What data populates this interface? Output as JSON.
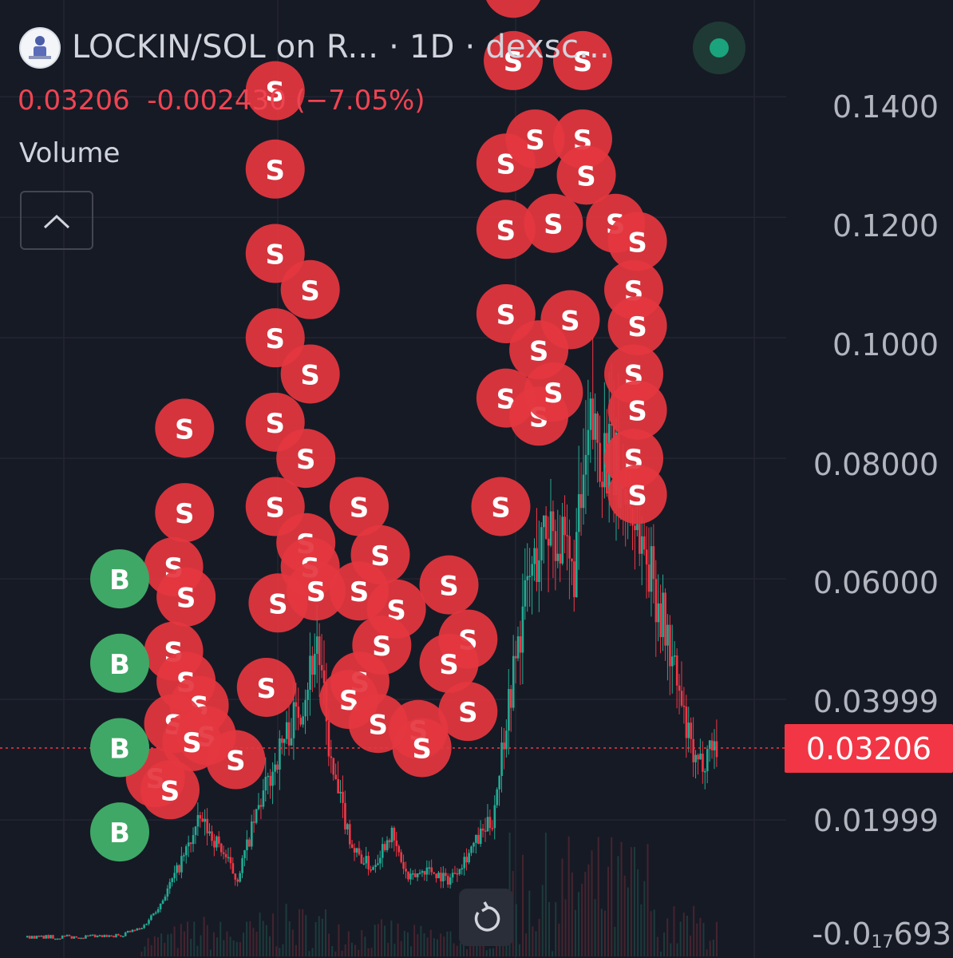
{
  "header": {
    "title": "LOCKIN/SOL on R...  · 1D · dexsc...",
    "price": "0.03206",
    "change": "-0.002430 (−7.05%)",
    "volume_label": "Volume",
    "collapse_icon": "chevron-up-icon",
    "logo_icon": "token-logo-icon",
    "status_icon": "live-status-dot-icon"
  },
  "controls": {
    "reset_icon": "reset-rotate-icon"
  },
  "colors": {
    "up": "#22ab94",
    "down": "#f23645",
    "sell_marker": "#e4373f",
    "buy_marker": "#3fa866",
    "background": "#161a25",
    "grid": "#232632"
  },
  "chart_data": {
    "type": "candlestick",
    "title": "LOCKIN/SOL on R...  · 1D · dexsc...",
    "interval": "1D",
    "last_price": 0.03206,
    "last_price_label": "0.03206",
    "change": -0.00243,
    "change_pct": -7.05,
    "y_tick_labels": [
      "0.1400",
      "0.1200",
      "0.1000",
      "0.08000",
      "0.06000",
      "0.03999",
      "0.01999"
    ],
    "y_ticks": [
      0.14,
      0.12,
      0.1,
      0.08,
      0.06,
      0.03999,
      0.01999
    ],
    "y_bottom_label": {
      "prefix": "-0.0",
      "sub": "17",
      "suffix": "693"
    },
    "ylim": [
      0.0,
      0.155
    ],
    "grid": true,
    "close_path": [
      [
        0.0,
        0.0005
      ],
      [
        0.12,
        0.0006
      ],
      [
        0.16,
        0.002
      ],
      [
        0.185,
        0.006
      ],
      [
        0.21,
        0.012
      ],
      [
        0.24,
        0.02
      ],
      [
        0.27,
        0.015
      ],
      [
        0.29,
        0.01
      ],
      [
        0.32,
        0.022
      ],
      [
        0.35,
        0.032
      ],
      [
        0.38,
        0.04
      ],
      [
        0.4,
        0.05
      ],
      [
        0.42,
        0.028
      ],
      [
        0.45,
        0.015
      ],
      [
        0.475,
        0.012
      ],
      [
        0.5,
        0.018
      ],
      [
        0.525,
        0.01
      ],
      [
        0.55,
        0.012
      ],
      [
        0.58,
        0.01
      ],
      [
        0.61,
        0.015
      ],
      [
        0.64,
        0.02
      ],
      [
        0.66,
        0.038
      ],
      [
        0.69,
        0.06
      ],
      [
        0.72,
        0.07
      ],
      [
        0.75,
        0.06
      ],
      [
        0.775,
        0.085
      ],
      [
        0.8,
        0.08
      ],
      [
        0.83,
        0.072
      ],
      [
        0.86,
        0.06
      ],
      [
        0.88,
        0.05
      ],
      [
        0.905,
        0.035
      ],
      [
        0.92,
        0.028
      ],
      [
        0.94,
        0.033
      ],
      [
        0.95,
        0.032
      ]
    ],
    "buy_markers": [
      0.06,
      0.046,
      0.032,
      0.018
    ],
    "sell_markers": [
      {
        "x": 0.22,
        "y": 0.085
      },
      {
        "x": 0.22,
        "y": 0.071
      },
      {
        "x": 0.205,
        "y": 0.062
      },
      {
        "x": 0.222,
        "y": 0.057
      },
      {
        "x": 0.205,
        "y": 0.048
      },
      {
        "x": 0.222,
        "y": 0.043
      },
      {
        "x": 0.24,
        "y": 0.039
      },
      {
        "x": 0.205,
        "y": 0.036
      },
      {
        "x": 0.25,
        "y": 0.034
      },
      {
        "x": 0.29,
        "y": 0.03
      },
      {
        "x": 0.18,
        "y": 0.027
      },
      {
        "x": 0.2,
        "y": 0.025
      },
      {
        "x": 0.23,
        "y": 0.033
      },
      {
        "x": 0.344,
        "y": 0.141
      },
      {
        "x": 0.344,
        "y": 0.128
      },
      {
        "x": 0.344,
        "y": 0.114
      },
      {
        "x": 0.392,
        "y": 0.108
      },
      {
        "x": 0.344,
        "y": 0.1
      },
      {
        "x": 0.392,
        "y": 0.094
      },
      {
        "x": 0.344,
        "y": 0.086
      },
      {
        "x": 0.386,
        "y": 0.08
      },
      {
        "x": 0.344,
        "y": 0.072
      },
      {
        "x": 0.386,
        "y": 0.066
      },
      {
        "x": 0.392,
        "y": 0.062
      },
      {
        "x": 0.348,
        "y": 0.056
      },
      {
        "x": 0.4,
        "y": 0.058
      },
      {
        "x": 0.332,
        "y": 0.042
      },
      {
        "x": 0.459,
        "y": 0.072
      },
      {
        "x": 0.488,
        "y": 0.064
      },
      {
        "x": 0.459,
        "y": 0.058
      },
      {
        "x": 0.51,
        "y": 0.055
      },
      {
        "x": 0.49,
        "y": 0.049
      },
      {
        "x": 0.46,
        "y": 0.043
      },
      {
        "x": 0.445,
        "y": 0.04
      },
      {
        "x": 0.485,
        "y": 0.036
      },
      {
        "x": 0.54,
        "y": 0.035
      },
      {
        "x": 0.582,
        "y": 0.059
      },
      {
        "x": 0.608,
        "y": 0.05
      },
      {
        "x": 0.582,
        "y": 0.046
      },
      {
        "x": 0.608,
        "y": 0.038
      },
      {
        "x": 0.545,
        "y": 0.032
      },
      {
        "x": 0.653,
        "y": 0.072
      },
      {
        "x": 0.66,
        "y": 0.09
      },
      {
        "x": 0.705,
        "y": 0.087
      },
      {
        "x": 0.725,
        "y": 0.091
      },
      {
        "x": 0.66,
        "y": 0.104
      },
      {
        "x": 0.705,
        "y": 0.098
      },
      {
        "x": 0.748,
        "y": 0.103
      },
      {
        "x": 0.66,
        "y": 0.118
      },
      {
        "x": 0.725,
        "y": 0.119
      },
      {
        "x": 0.66,
        "y": 0.129
      },
      {
        "x": 0.7,
        "y": 0.133
      },
      {
        "x": 0.67,
        "y": 0.146
      },
      {
        "x": 0.67,
        "y": 0.158
      },
      {
        "x": 0.765,
        "y": 0.146
      },
      {
        "x": 0.765,
        "y": 0.133
      },
      {
        "x": 0.77,
        "y": 0.127
      },
      {
        "x": 0.81,
        "y": 0.119
      },
      {
        "x": 0.84,
        "y": 0.116
      },
      {
        "x": 0.835,
        "y": 0.108
      },
      {
        "x": 0.84,
        "y": 0.102
      },
      {
        "x": 0.835,
        "y": 0.094
      },
      {
        "x": 0.84,
        "y": 0.088
      },
      {
        "x": 0.835,
        "y": 0.08
      },
      {
        "x": 0.84,
        "y": 0.074
      }
    ]
  }
}
